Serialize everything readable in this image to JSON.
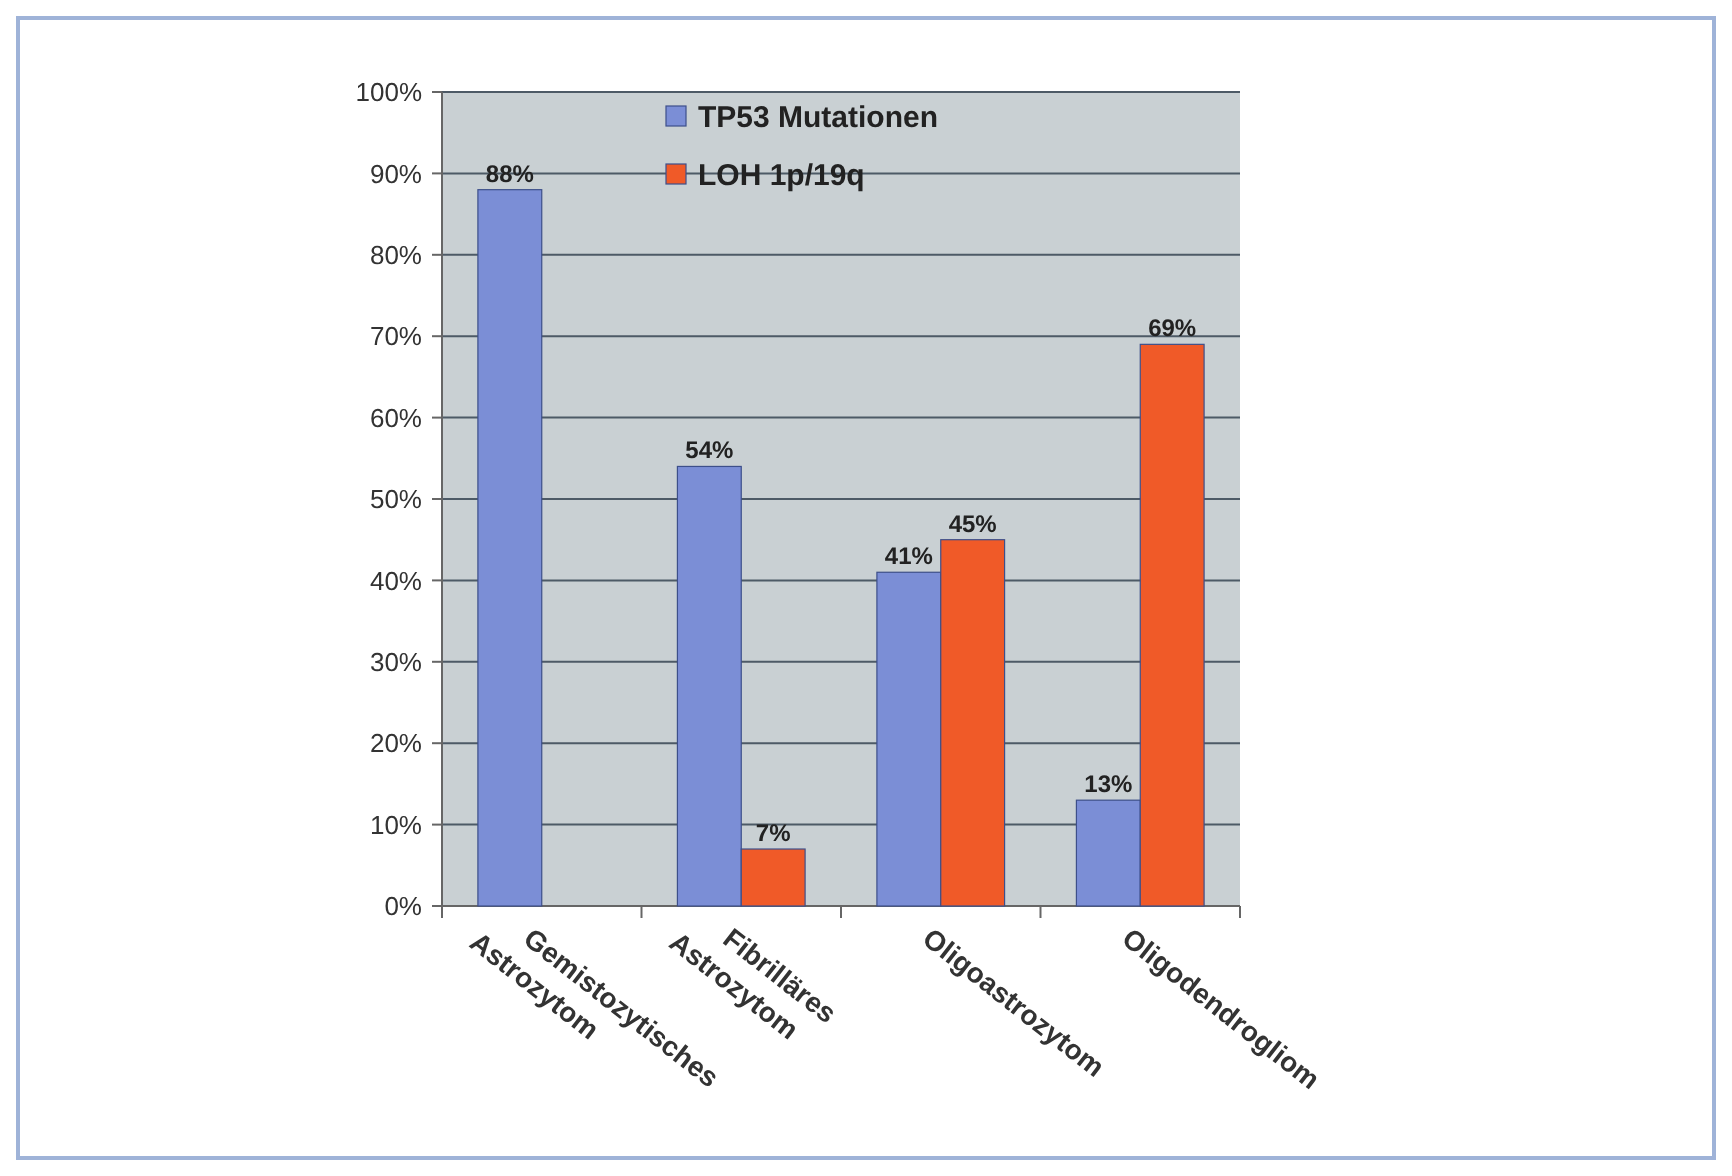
{
  "chart_data": {
    "type": "bar",
    "categories": [
      "Gemistozytisches\nAstrozytom",
      "Fibrilläres\nAstrozytom",
      "Oligoastrozytom",
      "Oligodendrogliom"
    ],
    "series": [
      {
        "name": "TP53 Mutationen",
        "color": "#7b8ed6",
        "values": [
          88,
          54,
          41,
          13
        ],
        "value_labels": [
          "88%",
          "54%",
          "41%",
          "13%"
        ]
      },
      {
        "name": "LOH 1p/19q",
        "color": "#f05a28",
        "values": [
          null,
          7,
          45,
          69
        ],
        "value_labels": [
          null,
          "7%",
          "45%",
          "69%"
        ]
      }
    ],
    "ylim": [
      0,
      100
    ],
    "yticks": [
      {
        "value": 0,
        "label": "0%"
      },
      {
        "value": 10,
        "label": "10%"
      },
      {
        "value": 20,
        "label": "20%"
      },
      {
        "value": 30,
        "label": "30%"
      },
      {
        "value": 40,
        "label": "40%"
      },
      {
        "value": 50,
        "label": "50%"
      },
      {
        "value": 60,
        "label": "60%"
      },
      {
        "value": 70,
        "label": "70%"
      },
      {
        "value": 80,
        "label": "80%"
      },
      {
        "value": 90,
        "label": "90%"
      },
      {
        "value": 100,
        "label": "100%"
      }
    ],
    "grid": "y",
    "legend": "top"
  }
}
